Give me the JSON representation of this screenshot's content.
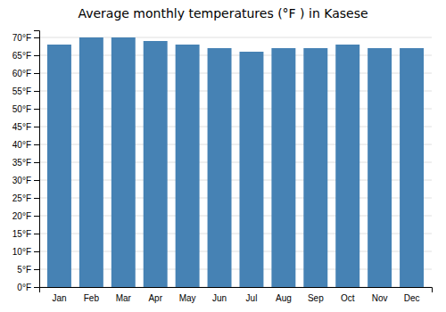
{
  "chart_data": {
    "type": "bar",
    "title": "Average monthly temperatures (°F ) in Kasese",
    "categories": [
      "Jan",
      "Feb",
      "Mar",
      "Apr",
      "May",
      "Jun",
      "Jul",
      "Aug",
      "Sep",
      "Oct",
      "Nov",
      "Dec"
    ],
    "values": [
      68,
      70,
      70,
      69,
      68,
      67,
      66,
      67,
      67,
      68,
      67,
      67
    ],
    "ylim": [
      0,
      72
    ],
    "yticks": [
      {
        "value": 0,
        "label": "0°F"
      },
      {
        "value": 5,
        "label": "5°F"
      },
      {
        "value": 10,
        "label": "10°F"
      },
      {
        "value": 15,
        "label": "15°F"
      },
      {
        "value": 20,
        "label": "20°F"
      },
      {
        "value": 25,
        "label": "25°F"
      },
      {
        "value": 30,
        "label": "30°F"
      },
      {
        "value": 35,
        "label": "35°F"
      },
      {
        "value": 40,
        "label": "40°F"
      },
      {
        "value": 45,
        "label": "45°F"
      },
      {
        "value": 50,
        "label": "50°F"
      },
      {
        "value": 55,
        "label": "55°F"
      },
      {
        "value": 60,
        "label": "60°F"
      },
      {
        "value": 65,
        "label": "65°F"
      },
      {
        "value": 70,
        "label": "70°F"
      }
    ],
    "grid": true
  }
}
